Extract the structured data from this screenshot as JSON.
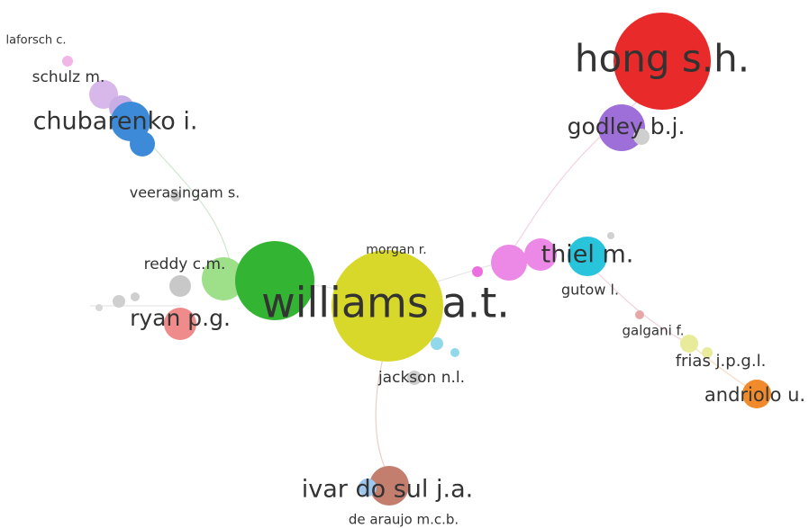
{
  "nodes": [
    {
      "label": "laforsch c."
    },
    {
      "label": "schulz m."
    },
    {
      "label": "chubarenko i."
    },
    {
      "label": "veerasingam s."
    },
    {
      "label": "reddy c.m."
    },
    {
      "label": "ryan p.g."
    },
    {
      "label": "williams a.t."
    },
    {
      "label": "morgan r."
    },
    {
      "label": "jackson n.l."
    },
    {
      "label": "ivar do sul j.a."
    },
    {
      "label": "de araujo m.c.b."
    },
    {
      "label": "hong s.h."
    },
    {
      "label": "godley b.j."
    },
    {
      "label": "thiel m."
    },
    {
      "label": "gutow l."
    },
    {
      "label": "galgani f."
    },
    {
      "label": "frias j.p.g.l."
    },
    {
      "label": "andriolo u."
    }
  ]
}
